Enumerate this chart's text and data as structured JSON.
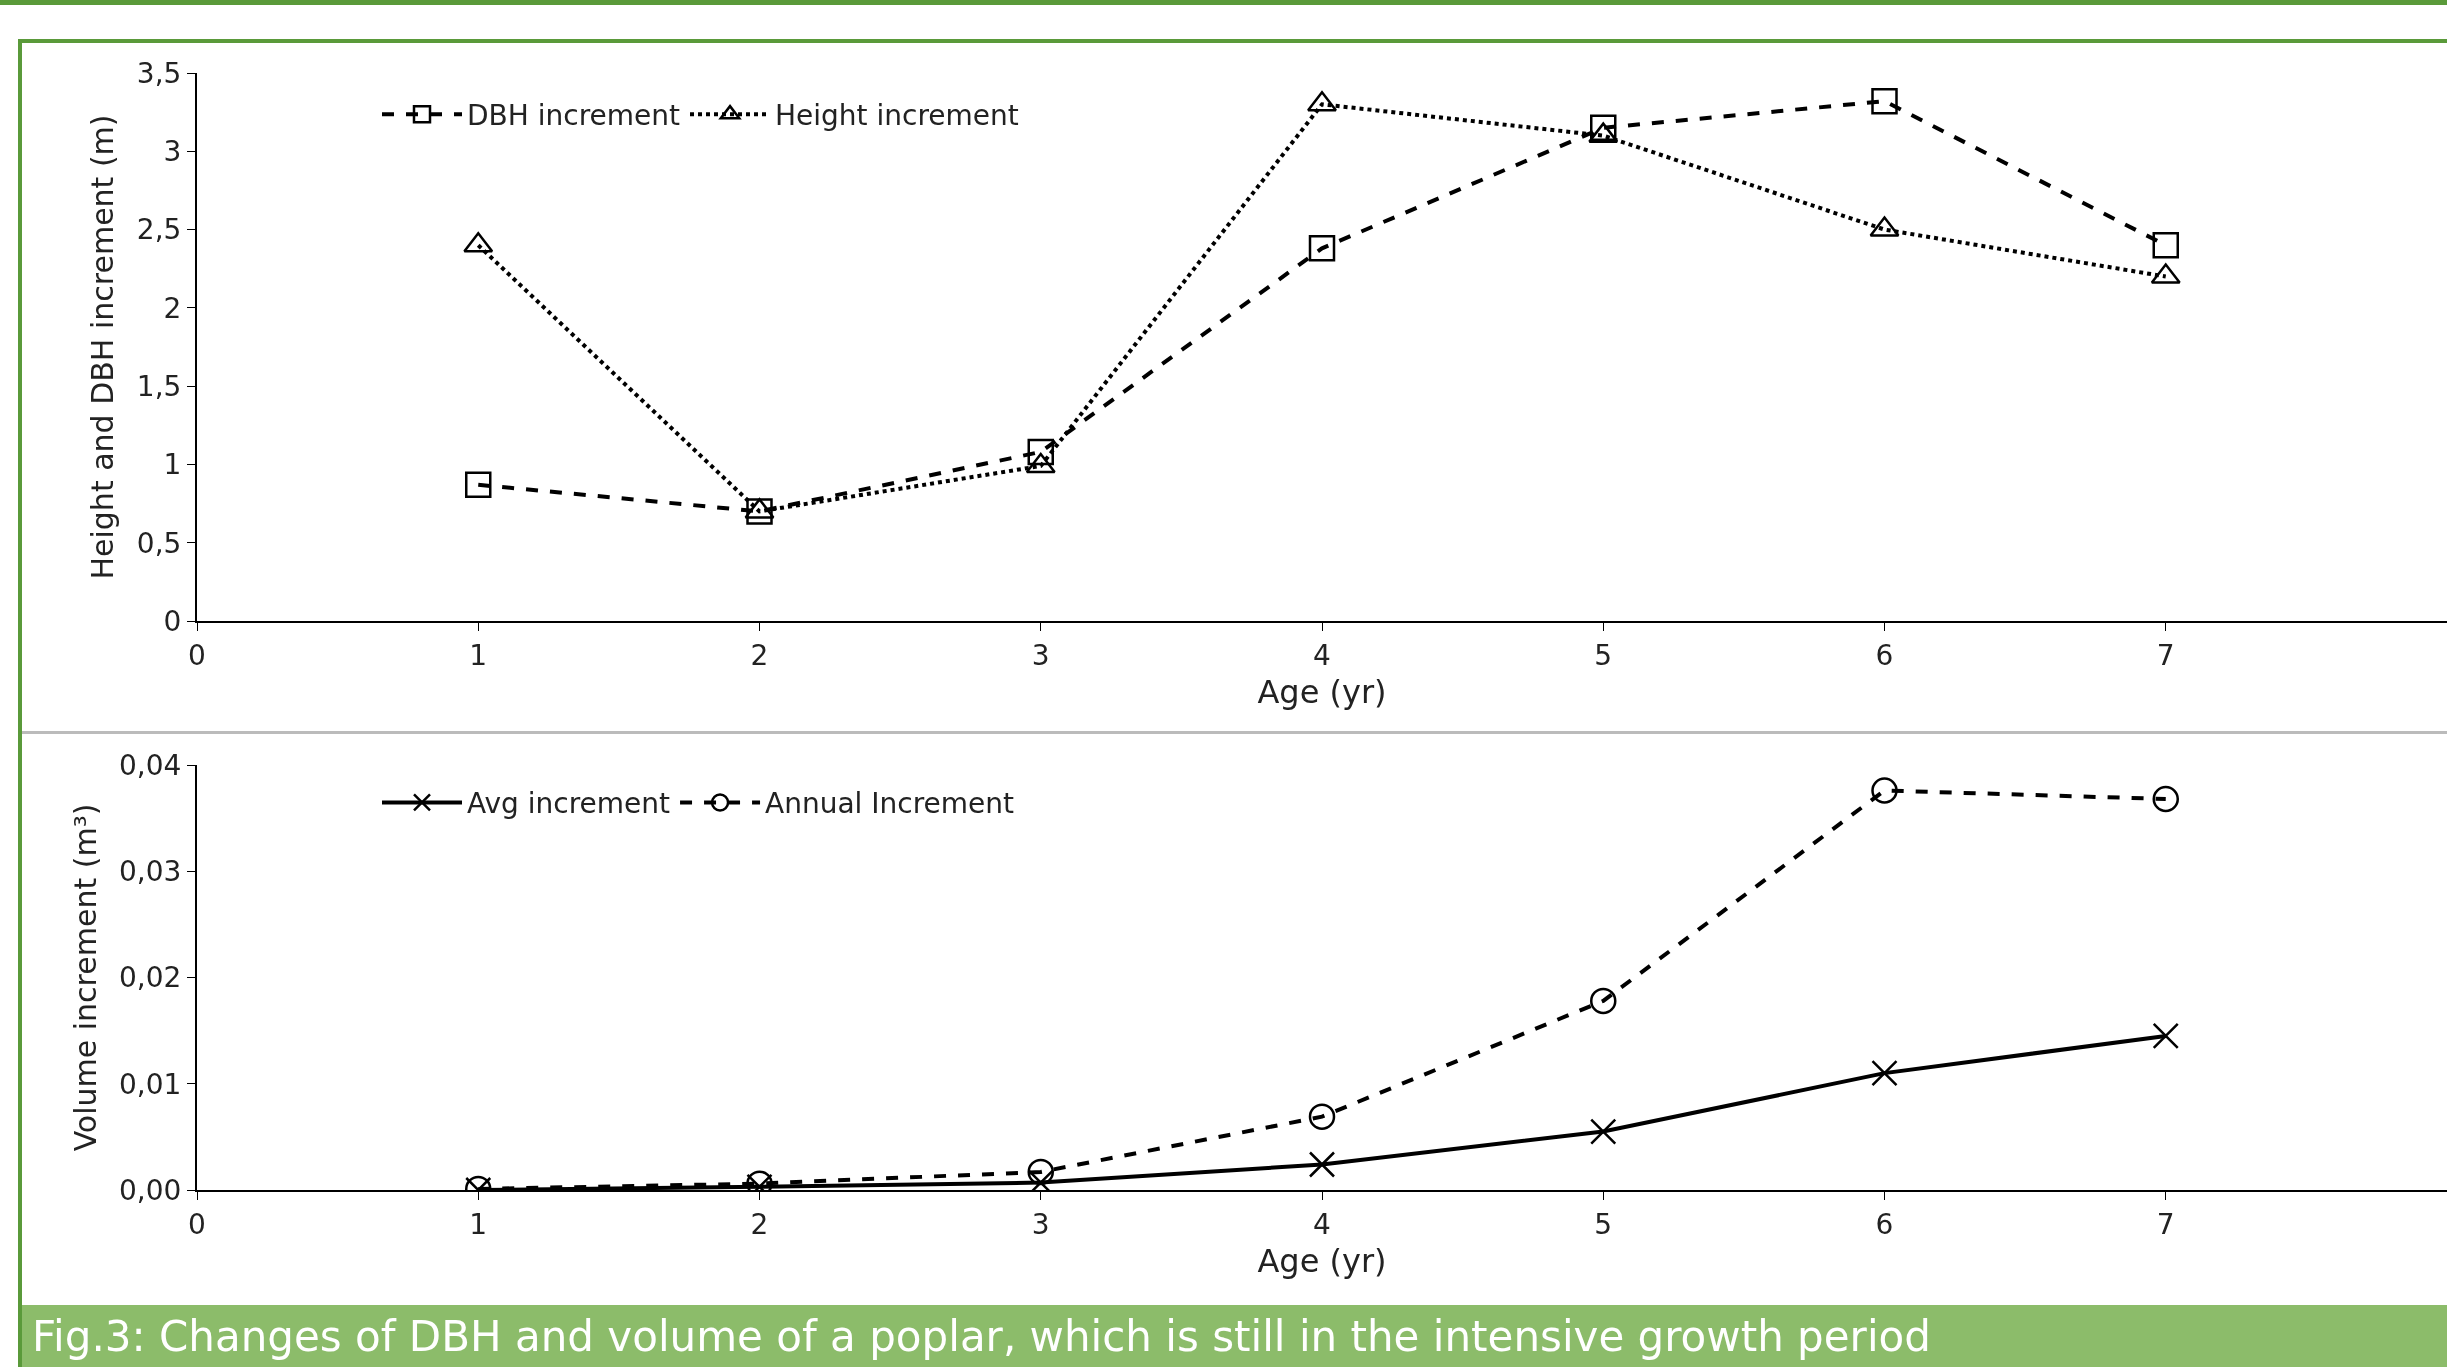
{
  "chart_data": [
    {
      "type": "line",
      "xlabel": "Age (yr)",
      "ylabel": "Height and DBH increment (m)",
      "x": [
        1,
        2,
        3,
        4,
        5,
        6,
        7
      ],
      "series": [
        {
          "name": "DBH increment",
          "color": "#000000",
          "marker": "square",
          "line_style": "dashed",
          "values": [
            0.87,
            0.7,
            1.08,
            2.38,
            3.15,
            3.32,
            2.4
          ]
        },
        {
          "name": "Height increment",
          "color": "#000000",
          "marker": "triangle",
          "line_style": "dotted",
          "values": [
            2.4,
            0.7,
            0.99,
            3.3,
            3.1,
            2.5,
            2.2
          ]
        }
      ],
      "xlim": [
        0,
        8
      ],
      "xticks": [
        0,
        1,
        2,
        3,
        4,
        5,
        6,
        7
      ],
      "ylim": [
        0,
        3.5
      ],
      "yticks": [
        0,
        {
          "value": 0.5,
          "label": "0,5"
        },
        1,
        {
          "value": 1.5,
          "label": "1,5"
        },
        2,
        {
          "value": 2.5,
          "label": "2,5"
        },
        3,
        {
          "value": 3.5,
          "label": "3,5"
        }
      ],
      "grid": false,
      "legend": "top left"
    },
    {
      "type": "line",
      "xlabel": "Age (yr)",
      "ylabel": "Volume increment (m³)",
      "x": [
        1,
        2,
        3,
        4,
        5,
        6,
        7
      ],
      "series": [
        {
          "name": "Avg increment",
          "color": "#000000",
          "marker": "cross",
          "line_style": "solid",
          "values": [
            0,
            0.0003,
            0.0007,
            0.0024,
            0.0055,
            0.011,
            0.0145
          ]
        },
        {
          "name": "Annual Increment",
          "color": "#000000",
          "marker": "circle",
          "line_style": "dashed",
          "values": [
            0.0001,
            0.0006,
            0.0017,
            0.0069,
            0.0178,
            0.0376,
            0.0368
          ]
        }
      ],
      "xlim": [
        0,
        8
      ],
      "xticks": [
        0,
        1,
        2,
        3,
        4,
        5,
        6,
        7
      ],
      "ylim": [
        0,
        0.04
      ],
      "yticks": [
        {
          "value": 0,
          "label": "0,00"
        },
        {
          "value": 0.01,
          "label": "0,01"
        },
        {
          "value": 0.02,
          "label": "0,02"
        },
        {
          "value": 0.03,
          "label": "0,03"
        },
        {
          "value": 0.04,
          "label": "0,04"
        }
      ],
      "grid": false,
      "legend": "top left",
      "annotations": [
        "Fig.3: Changes of DBH and volume of a poplar, which is still in the intensive growth period"
      ]
    }
  ]
}
